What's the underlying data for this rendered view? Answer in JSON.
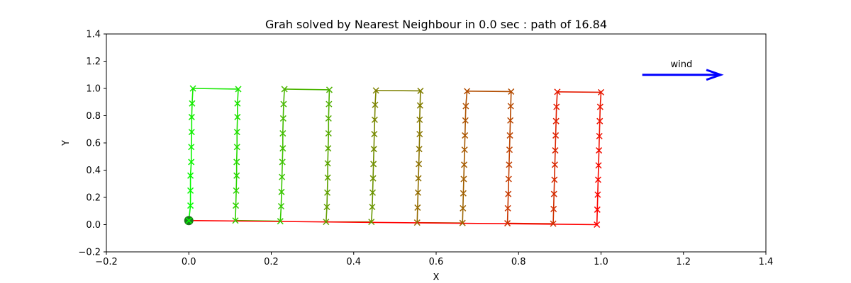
{
  "chart_data": {
    "type": "line",
    "title": "Grah solved by Nearest Neighbour in 0.0 sec : path of 16.84",
    "xlabel": "X",
    "ylabel": "Y",
    "xlim": [
      -0.2,
      1.4
    ],
    "ylim": [
      -0.2,
      1.4
    ],
    "xticks": [
      -0.2,
      0.0,
      0.2,
      0.4,
      0.6,
      0.8,
      1.0,
      1.2,
      1.4
    ],
    "yticks": [
      -0.2,
      0.0,
      0.2,
      0.4,
      0.6,
      0.8,
      1.0,
      1.2,
      1.4
    ],
    "xtick_labels": [
      "−0.2",
      "0.0",
      "0.2",
      "0.4",
      "0.6",
      "0.8",
      "1.0",
      "1.2",
      "1.4"
    ],
    "ytick_labels": [
      "−0.2",
      "0.0",
      "0.2",
      "0.4",
      "0.6",
      "0.8",
      "1.0",
      "1.2",
      "1.4"
    ],
    "grid": false,
    "start_point": {
      "x": 0.0,
      "y": 0.03,
      "color": "#1a7a1a"
    },
    "path_color_start": "#00ff00",
    "path_color_end": "#ff0000",
    "path": [
      [
        0.0,
        0.03
      ],
      [
        0.004,
        0.14
      ],
      [
        0.004,
        0.25
      ],
      [
        0.004,
        0.36
      ],
      [
        0.006,
        0.46
      ],
      [
        0.006,
        0.57
      ],
      [
        0.007,
        0.68
      ],
      [
        0.007,
        0.79
      ],
      [
        0.008,
        0.89
      ],
      [
        0.01,
        1.0
      ],
      [
        0.12,
        0.995
      ],
      [
        0.118,
        0.89
      ],
      [
        0.118,
        0.79
      ],
      [
        0.117,
        0.68
      ],
      [
        0.117,
        0.57
      ],
      [
        0.116,
        0.46
      ],
      [
        0.116,
        0.36
      ],
      [
        0.115,
        0.25
      ],
      [
        0.114,
        0.14
      ],
      [
        0.113,
        0.03
      ],
      [
        0.222,
        0.025
      ],
      [
        0.224,
        0.135
      ],
      [
        0.225,
        0.24
      ],
      [
        0.226,
        0.35
      ],
      [
        0.227,
        0.46
      ],
      [
        0.228,
        0.56
      ],
      [
        0.228,
        0.67
      ],
      [
        0.229,
        0.78
      ],
      [
        0.23,
        0.885
      ],
      [
        0.232,
        0.995
      ],
      [
        0.341,
        0.99
      ],
      [
        0.34,
        0.885
      ],
      [
        0.339,
        0.78
      ],
      [
        0.339,
        0.67
      ],
      [
        0.338,
        0.56
      ],
      [
        0.337,
        0.45
      ],
      [
        0.337,
        0.345
      ],
      [
        0.336,
        0.235
      ],
      [
        0.335,
        0.13
      ],
      [
        0.333,
        0.02
      ],
      [
        0.443,
        0.02
      ],
      [
        0.445,
        0.13
      ],
      [
        0.446,
        0.235
      ],
      [
        0.447,
        0.34
      ],
      [
        0.448,
        0.445
      ],
      [
        0.449,
        0.555
      ],
      [
        0.45,
        0.665
      ],
      [
        0.451,
        0.77
      ],
      [
        0.452,
        0.88
      ],
      [
        0.454,
        0.985
      ],
      [
        0.562,
        0.982
      ],
      [
        0.561,
        0.875
      ],
      [
        0.56,
        0.77
      ],
      [
        0.56,
        0.665
      ],
      [
        0.559,
        0.555
      ],
      [
        0.558,
        0.445
      ],
      [
        0.557,
        0.34
      ],
      [
        0.556,
        0.235
      ],
      [
        0.555,
        0.125
      ],
      [
        0.554,
        0.015
      ],
      [
        0.664,
        0.012
      ],
      [
        0.665,
        0.12
      ],
      [
        0.666,
        0.23
      ],
      [
        0.667,
        0.335
      ],
      [
        0.668,
        0.44
      ],
      [
        0.669,
        0.55
      ],
      [
        0.67,
        0.655
      ],
      [
        0.671,
        0.765
      ],
      [
        0.672,
        0.87
      ],
      [
        0.675,
        0.98
      ],
      [
        0.782,
        0.977
      ],
      [
        0.781,
        0.87
      ],
      [
        0.78,
        0.765
      ],
      [
        0.779,
        0.655
      ],
      [
        0.778,
        0.55
      ],
      [
        0.777,
        0.44
      ],
      [
        0.776,
        0.335
      ],
      [
        0.775,
        0.225
      ],
      [
        0.774,
        0.12
      ],
      [
        0.773,
        0.01
      ],
      [
        0.884,
        0.007
      ],
      [
        0.885,
        0.115
      ],
      [
        0.886,
        0.225
      ],
      [
        0.887,
        0.33
      ],
      [
        0.888,
        0.44
      ],
      [
        0.889,
        0.545
      ],
      [
        0.89,
        0.655
      ],
      [
        0.891,
        0.76
      ],
      [
        0.892,
        0.865
      ],
      [
        0.894,
        0.975
      ],
      [
        1.0,
        0.972
      ],
      [
        0.998,
        0.865
      ],
      [
        0.997,
        0.76
      ],
      [
        0.996,
        0.65
      ],
      [
        0.995,
        0.545
      ],
      [
        0.994,
        0.435
      ],
      [
        0.993,
        0.33
      ],
      [
        0.992,
        0.22
      ],
      [
        0.991,
        0.11
      ],
      [
        0.99,
        0.0
      ],
      [
        0.0,
        0.03
      ]
    ],
    "annotation": {
      "text": "wind",
      "text_color": "#0000ff",
      "arrow_color": "#0000ff",
      "arrow_start": [
        1.1,
        1.1
      ],
      "arrow_end": [
        1.29,
        1.1
      ]
    }
  }
}
